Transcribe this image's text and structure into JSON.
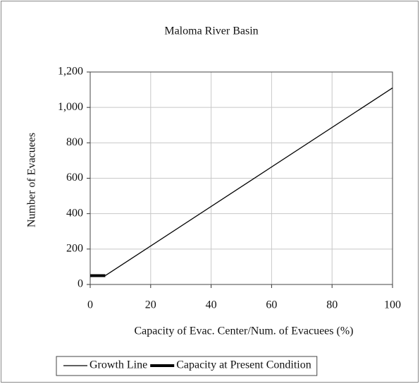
{
  "chart_data": {
    "type": "line",
    "title": "Maloma River Basin",
    "x_label": "Capacity of Evac. Center/Num. of Evacuees (%)",
    "y_label": "Number of  Evacuees",
    "xlim": [
      0,
      100
    ],
    "xticks": [
      0,
      20,
      40,
      60,
      80,
      100
    ],
    "ylim": [
      0,
      1200
    ],
    "yticks": [
      0,
      200,
      400,
      600,
      800,
      {
        "value": 1000,
        "label": "1,000"
      },
      {
        "value": 1200,
        "label": "1,200"
      }
    ],
    "grid": true,
    "legend": "bottom",
    "series": [
      {
        "name": "Growth Line",
        "color": "#000000",
        "line_width": 1.3,
        "x": [
          5,
          100
        ],
        "values": [
          50,
          1110
        ]
      },
      {
        "name": "Capacity at Present Condition",
        "color": "#000000",
        "line_width": 4,
        "x": [
          0,
          5
        ],
        "values": [
          50,
          50
        ]
      }
    ]
  }
}
